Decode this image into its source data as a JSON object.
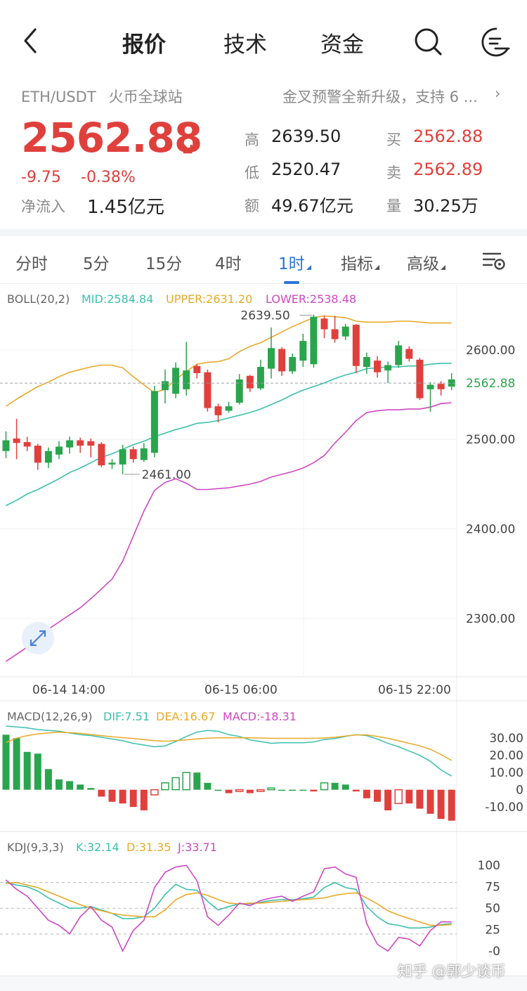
{
  "nav": {
    "tabs": [
      "报价",
      "技术",
      "资金"
    ],
    "active_tab": 0
  },
  "pair": {
    "symbol": "ETH/USDT",
    "exchange": "火币全球站"
  },
  "notice": {
    "text": "金叉预警全新升级，支持 6 ...",
    "chevron": "›"
  },
  "price": {
    "last": "2562.88",
    "change": "-9.75",
    "change_pct": "-0.38%",
    "inflow_label": "净流入",
    "inflow_value": "1.45亿元"
  },
  "stats": {
    "high_label": "高",
    "high": "2639.50",
    "low_label": "低",
    "low": "2520.47",
    "amount_label": "额",
    "amount": "49.67亿元",
    "bid_label": "买",
    "bid": "2562.88",
    "ask_label": "卖",
    "ask": "2562.89",
    "volume_label": "量",
    "volume": "30.25万"
  },
  "ktabs": [
    "分时",
    "5分",
    "15分",
    "4时",
    "1时",
    "指标",
    "高级"
  ],
  "ktab_active": 4,
  "colors": {
    "up": "#2aa54d",
    "down": "#e0403c",
    "mid": "#3cc0ac",
    "upper": "#e8a928",
    "lower": "#cf48c2",
    "accent": "#2b74d8"
  },
  "chart_data": [
    {
      "type": "candlestick",
      "title": "",
      "indicator": {
        "name": "BOLL(20,2)",
        "mid_label": "MID:2584.84",
        "upper_label": "UPPER:2631.20",
        "lower_label": "LOWER:2538.48"
      },
      "y_ticks": [
        "2600.00",
        "2500.00",
        "2400.00",
        "2300.00"
      ],
      "ylim": [
        2245,
        2665
      ],
      "x_ticks": [
        "06-14 14:00",
        "06-15 06:00",
        "06-15 22:00"
      ],
      "last_price": "2562.88",
      "annotations": {
        "high": "2639.50",
        "low": "2461.00"
      },
      "candles": [
        {
          "o": 2487,
          "c": 2499,
          "h": 2509,
          "l": 2479
        },
        {
          "o": 2501,
          "c": 2496,
          "h": 2523,
          "l": 2478
        },
        {
          "o": 2497,
          "c": 2492,
          "h": 2503,
          "l": 2487
        },
        {
          "o": 2493,
          "c": 2474,
          "h": 2495,
          "l": 2466
        },
        {
          "o": 2474,
          "c": 2487,
          "h": 2491,
          "l": 2468
        },
        {
          "o": 2483,
          "c": 2492,
          "h": 2498,
          "l": 2478
        },
        {
          "o": 2491,
          "c": 2499,
          "h": 2503,
          "l": 2484
        },
        {
          "o": 2499,
          "c": 2493,
          "h": 2502,
          "l": 2485
        },
        {
          "o": 2498,
          "c": 2493,
          "h": 2501,
          "l": 2480
        },
        {
          "o": 2495,
          "c": 2471,
          "h": 2497,
          "l": 2469
        },
        {
          "o": 2472,
          "c": 2474,
          "h": 2478,
          "l": 2467
        },
        {
          "o": 2472,
          "c": 2489,
          "h": 2494,
          "l": 2461
        },
        {
          "o": 2489,
          "c": 2478,
          "h": 2492,
          "l": 2474
        },
        {
          "o": 2477,
          "c": 2490,
          "h": 2496,
          "l": 2475
        },
        {
          "o": 2485,
          "c": 2554,
          "h": 2560,
          "l": 2480
        },
        {
          "o": 2555,
          "c": 2565,
          "h": 2578,
          "l": 2540
        },
        {
          "o": 2551,
          "c": 2580,
          "h": 2586,
          "l": 2546
        },
        {
          "o": 2556,
          "c": 2577,
          "h": 2609,
          "l": 2549
        },
        {
          "o": 2582,
          "c": 2574,
          "h": 2584,
          "l": 2568
        },
        {
          "o": 2575,
          "c": 2535,
          "h": 2578,
          "l": 2531
        },
        {
          "o": 2537,
          "c": 2527,
          "h": 2540,
          "l": 2519
        },
        {
          "o": 2532,
          "c": 2537,
          "h": 2542,
          "l": 2530
        },
        {
          "o": 2541,
          "c": 2567,
          "h": 2573,
          "l": 2539
        },
        {
          "o": 2571,
          "c": 2557,
          "h": 2572,
          "l": 2553
        },
        {
          "o": 2557,
          "c": 2581,
          "h": 2589,
          "l": 2555
        },
        {
          "o": 2579,
          "c": 2602,
          "h": 2625,
          "l": 2568
        },
        {
          "o": 2601,
          "c": 2576,
          "h": 2603,
          "l": 2571
        },
        {
          "o": 2576,
          "c": 2592,
          "h": 2596,
          "l": 2573
        },
        {
          "o": 2588,
          "c": 2610,
          "h": 2618,
          "l": 2581
        },
        {
          "o": 2584,
          "c": 2637,
          "h": 2639.5,
          "l": 2580
        },
        {
          "o": 2635,
          "c": 2623,
          "h": 2638,
          "l": 2613
        },
        {
          "o": 2623,
          "c": 2612,
          "h": 2638,
          "l": 2608
        },
        {
          "o": 2615,
          "c": 2626,
          "h": 2629,
          "l": 2611
        },
        {
          "o": 2628,
          "c": 2582,
          "h": 2629,
          "l": 2574
        },
        {
          "o": 2581,
          "c": 2592,
          "h": 2597,
          "l": 2573
        },
        {
          "o": 2588,
          "c": 2575,
          "h": 2593,
          "l": 2569
        },
        {
          "o": 2577,
          "c": 2583,
          "h": 2587,
          "l": 2563
        },
        {
          "o": 2583,
          "c": 2605,
          "h": 2610,
          "l": 2580
        },
        {
          "o": 2601,
          "c": 2590,
          "h": 2604,
          "l": 2587
        },
        {
          "o": 2589,
          "c": 2546,
          "h": 2591,
          "l": 2544
        },
        {
          "o": 2556,
          "c": 2561,
          "h": 2564,
          "l": 2531
        },
        {
          "o": 2562,
          "c": 2556,
          "h": 2565,
          "l": 2549
        },
        {
          "o": 2559,
          "c": 2567,
          "h": 2574,
          "l": 2555
        }
      ],
      "series": [
        {
          "name": "MID",
          "values": [
            2426,
            2432,
            2439,
            2444,
            2450,
            2456,
            2463,
            2468,
            2474,
            2480,
            2484,
            2489,
            2494,
            2498,
            2503,
            2507,
            2511,
            2514,
            2518,
            2519,
            2521,
            2524,
            2527,
            2530,
            2534,
            2539,
            2544,
            2550,
            2555,
            2559,
            2563,
            2568,
            2572,
            2575,
            2579,
            2580,
            2581,
            2581,
            2582,
            2582,
            2584,
            2585,
            2585
          ]
        },
        {
          "name": "UPPER",
          "values": [
            2537,
            2545,
            2552,
            2559,
            2564,
            2570,
            2575,
            2578,
            2581,
            2583,
            2583,
            2580,
            2570,
            2561,
            2552,
            2556,
            2567,
            2576,
            2584,
            2586,
            2587,
            2590,
            2598,
            2604,
            2608,
            2614,
            2620,
            2626,
            2631,
            2636,
            2638,
            2637,
            2636,
            2632,
            2631,
            2631,
            2631,
            2632,
            2632,
            2631,
            2630,
            2630,
            2630
          ]
        },
        {
          "name": "LOWER",
          "values": [
            2252,
            2260,
            2268,
            2278,
            2288,
            2296,
            2304,
            2312,
            2322,
            2333,
            2344,
            2364,
            2392,
            2420,
            2443,
            2452,
            2456,
            2451,
            2444,
            2444,
            2445,
            2446,
            2448,
            2450,
            2453,
            2458,
            2461,
            2464,
            2468,
            2474,
            2482,
            2496,
            2508,
            2521,
            2530,
            2532,
            2533,
            2533,
            2534,
            2534,
            2536,
            2540,
            2541
          ]
        }
      ]
    },
    {
      "type": "bar",
      "title": "",
      "indicator": {
        "name": "MACD(12,26,9)",
        "dif_label": "DIF:7.51",
        "dea_label": "DEA:16.67",
        "macd_label": "MACD:-18.31"
      },
      "y_ticks": [
        "30.00",
        "20.00",
        "10.00",
        "0",
        "-10.00"
      ],
      "ylim": [
        -21,
        35
      ],
      "values": [
        32,
        30,
        22,
        21,
        12,
        6,
        5,
        3,
        1,
        -4,
        -7,
        -8,
        -10,
        -12,
        -3,
        4,
        7,
        10,
        10,
        4,
        0,
        -2,
        -1,
        -2,
        -1,
        1,
        0,
        0,
        0,
        -1,
        4,
        4,
        3,
        -1,
        -5,
        -7,
        -12,
        -8,
        -8,
        -11,
        -14,
        -17,
        -18
      ],
      "series": [
        {
          "name": "DIF",
          "values": [
            37,
            36.5,
            36,
            35,
            34.5,
            34,
            33,
            32,
            31.5,
            30.5,
            29.5,
            28.5,
            27,
            26,
            25,
            25.5,
            28,
            31,
            33.5,
            34.5,
            34,
            32,
            31,
            29,
            28,
            27,
            27.3,
            27.3,
            27.3,
            27.8,
            29.2,
            29.8,
            31,
            32,
            31.5,
            29.5,
            27,
            25,
            22.5,
            20,
            16.5,
            11.5,
            8
          ]
        },
        {
          "name": "DEA",
          "values": [
            27.5,
            30,
            31.5,
            32.5,
            33,
            33.5,
            33.2,
            32.8,
            32.1,
            31.4,
            30.8,
            30.3,
            29.8,
            29.2,
            28.5,
            28.2,
            28.6,
            29,
            29.6,
            30,
            30.2,
            30.2,
            30.2,
            30.2,
            30.1,
            29.9,
            29.9,
            29.9,
            29.9,
            29.9,
            30.1,
            30.5,
            31.2,
            31.9,
            31.9,
            31,
            29.9,
            28.5,
            27,
            25.5,
            23.5,
            20.5,
            17
          ]
        }
      ]
    },
    {
      "type": "line",
      "title": "",
      "indicator": {
        "name": "KDJ(9,3,3)",
        "k_label": "K:32.14",
        "d_label": "D:31.35",
        "j_label": "J:33.71"
      },
      "y_ticks": [
        "100",
        "75",
        "50",
        "25",
        "-0"
      ],
      "ylim": [
        -8,
        110
      ],
      "series": [
        {
          "name": "K",
          "values": [
            80,
            77,
            75,
            70,
            62,
            56,
            50,
            50,
            52,
            48,
            44,
            38,
            38,
            40,
            50,
            66,
            78,
            72,
            71,
            58,
            48,
            52,
            55,
            55,
            57,
            59,
            60,
            60,
            61,
            63,
            74,
            80,
            74,
            72,
            52,
            40,
            32,
            30,
            27,
            27,
            28,
            31,
            32
          ]
        },
        {
          "name": "D",
          "values": [
            79,
            80,
            77,
            74,
            69,
            64,
            59,
            54,
            50,
            47,
            44,
            42,
            41,
            40,
            40,
            48,
            60,
            66,
            68,
            65,
            60,
            56,
            55,
            56,
            56,
            57,
            58,
            59,
            60,
            61,
            62,
            65,
            67,
            68,
            62,
            55,
            47,
            42,
            38,
            34,
            30,
            30,
            31
          ]
        },
        {
          "name": "J",
          "values": [
            83,
            72,
            64,
            50,
            36,
            30,
            20,
            40,
            52,
            36,
            28,
            0,
            24,
            36,
            74,
            92,
            98,
            100,
            82,
            40,
            30,
            42,
            56,
            53,
            59,
            62,
            64,
            58,
            64,
            69,
            96,
            98,
            90,
            86,
            32,
            8,
            0,
            16,
            14,
            6,
            24,
            34,
            34
          ]
        }
      ]
    }
  ]
}
